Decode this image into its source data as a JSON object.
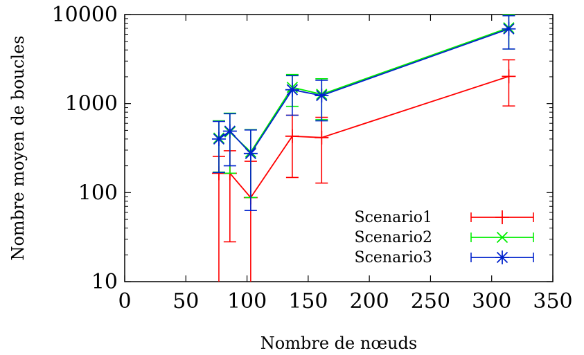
{
  "chart_data": {
    "type": "line",
    "title": "",
    "xlabel": "Nombre de nœuds",
    "ylabel": "Nombre moyen de boucles",
    "xlim": [
      0,
      350
    ],
    "ylim": [
      10,
      10000
    ],
    "yscale": "log",
    "x_ticks": [
      "0",
      "50",
      "100",
      "150",
      "200",
      "250",
      "300",
      "350"
    ],
    "y_ticks": [
      "10",
      "100",
      "1000",
      "10000"
    ],
    "x_tick_values": [
      0,
      50,
      100,
      150,
      200,
      250,
      300,
      350
    ],
    "y_tick_values": [
      10,
      100,
      1000,
      10000
    ],
    "grid": false,
    "legend_position": "bottom-right",
    "series": [
      {
        "name": "Scenario1",
        "color": "#ff0000",
        "marker": "plus",
        "points": [
          {
            "x": 77,
            "y": 165,
            "ylow": 10,
            "yhigh": 255
          },
          {
            "x": 86,
            "y": 165,
            "ylow": 28,
            "yhigh": 295
          },
          {
            "x": 103,
            "y": 88,
            "ylow": 10,
            "yhigh": 225
          },
          {
            "x": 137,
            "y": 430,
            "ylow": 148,
            "yhigh": 740
          },
          {
            "x": 161,
            "y": 415,
            "ylow": 128,
            "yhigh": 700
          },
          {
            "x": 314,
            "y": 2020,
            "ylow": 940,
            "yhigh": 3100
          }
        ]
      },
      {
        "name": "Scenario2",
        "color": "#00ee00",
        "marker": "cross",
        "points": [
          {
            "x": 77,
            "y": 410,
            "ylow": 170,
            "yhigh": 640
          },
          {
            "x": 86,
            "y": 480,
            "ylow": 165,
            "yhigh": 780
          },
          {
            "x": 103,
            "y": 285,
            "ylow": 88,
            "yhigh": 510
          },
          {
            "x": 137,
            "y": 1520,
            "ylow": 930,
            "yhigh": 2120
          },
          {
            "x": 161,
            "y": 1270,
            "ylow": 660,
            "yhigh": 1900
          },
          {
            "x": 314,
            "y": 7100,
            "ylow": 4100,
            "yhigh": 9900
          }
        ]
      },
      {
        "name": "Scenario3",
        "color": "#0022cc",
        "marker": "star",
        "points": [
          {
            "x": 77,
            "y": 400,
            "ylow": 168,
            "yhigh": 630
          },
          {
            "x": 86,
            "y": 490,
            "ylow": 200,
            "yhigh": 770
          },
          {
            "x": 103,
            "y": 275,
            "ylow": 63,
            "yhigh": 505
          },
          {
            "x": 137,
            "y": 1430,
            "ylow": 740,
            "yhigh": 2060
          },
          {
            "x": 161,
            "y": 1230,
            "ylow": 640,
            "yhigh": 1830
          },
          {
            "x": 314,
            "y": 6900,
            "ylow": 4100,
            "yhigh": 9700
          }
        ]
      }
    ]
  }
}
